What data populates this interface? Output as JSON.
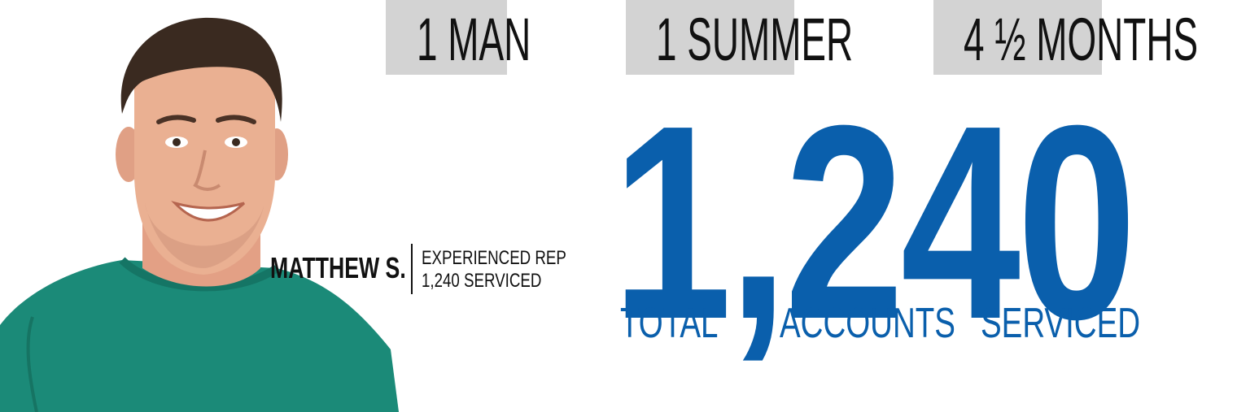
{
  "headline_tags": [
    {
      "label": "1 MAN"
    },
    {
      "label": "1 SUMMER"
    },
    {
      "label": "4 ½ MONTHS"
    }
  ],
  "stat": {
    "value": "1,240",
    "words": [
      "TOTAL",
      "ACCOUNTS",
      "SERVICED"
    ]
  },
  "person": {
    "name": "MATTHEW S.",
    "role_line1": "EXPERIENCED REP",
    "role_line2": "1,240 SERVICED"
  },
  "colors": {
    "accent_blue": "#0a5fac",
    "tag_gray": "#d3d3d3",
    "shirt_teal": "#1b8a78"
  }
}
